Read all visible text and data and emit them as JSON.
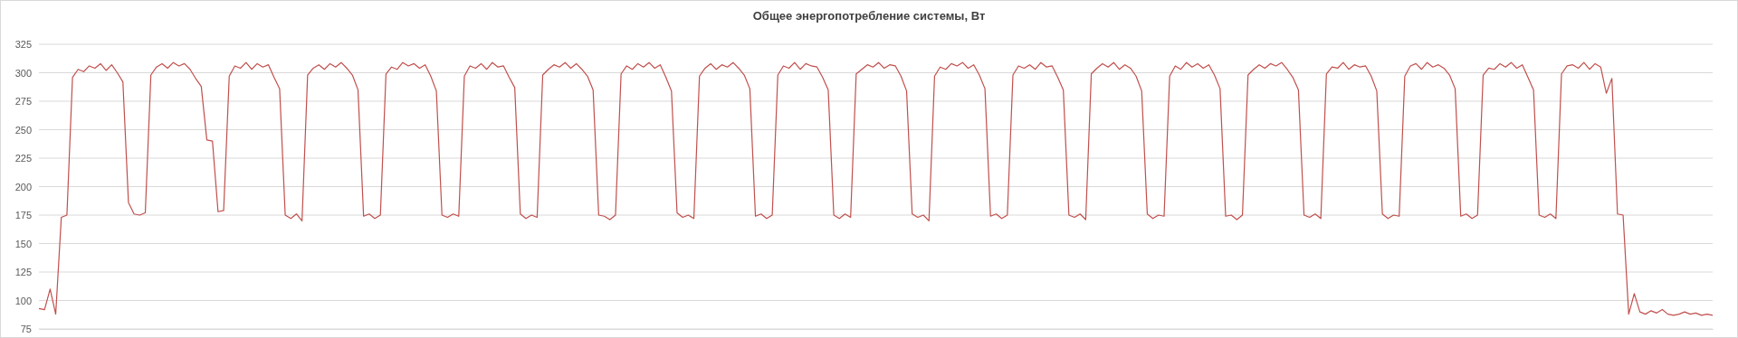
{
  "chart_data": {
    "type": "line",
    "title": "Общее энергопотребление системы, Вт",
    "categories": [
      null,
      null,
      null,
      null,
      null,
      null,
      null,
      null,
      null,
      null,
      null,
      null,
      null,
      null,
      null,
      null,
      null,
      null,
      null,
      null,
      null,
      null,
      null,
      null,
      null,
      null,
      null,
      null,
      null,
      null,
      null,
      null,
      null,
      null,
      null,
      null,
      null,
      null,
      null,
      null,
      null,
      null,
      null,
      null,
      null,
      null,
      null,
      null,
      null,
      null,
      null,
      null,
      null,
      null,
      null,
      null,
      null,
      null,
      null,
      null,
      null,
      null,
      null,
      null,
      null,
      null,
      null,
      null,
      null,
      null,
      null,
      null,
      null,
      null,
      null,
      null,
      null,
      null,
      null,
      null,
      null,
      null,
      null,
      null,
      null,
      null,
      null,
      null,
      null,
      null,
      null,
      null,
      null,
      null,
      null,
      null,
      null,
      null,
      null,
      null,
      null,
      null,
      null,
      null,
      null,
      null,
      null,
      null,
      null,
      null,
      null,
      null,
      null,
      null,
      null,
      null,
      null,
      null,
      null,
      null,
      null,
      null,
      null,
      null,
      null,
      null,
      null,
      null,
      null,
      null,
      null,
      null,
      null,
      null,
      null,
      null,
      null,
      null,
      null,
      null,
      null,
      null,
      null,
      null,
      null,
      null,
      null,
      null,
      null,
      null,
      null,
      null,
      null,
      null,
      null,
      null,
      null,
      null,
      null,
      null,
      null,
      null,
      null,
      null,
      null,
      null,
      null,
      null,
      null,
      null,
      null,
      null,
      null,
      null,
      null,
      null,
      null,
      null,
      null,
      null,
      null,
      null,
      null,
      null,
      null,
      null,
      null,
      null,
      null,
      null,
      null,
      null,
      null,
      null,
      null,
      null,
      null,
      null,
      null,
      null,
      null,
      null,
      null,
      null,
      null,
      null,
      null,
      null,
      null,
      null,
      null,
      null,
      null,
      null,
      null,
      null,
      null,
      null,
      null,
      null,
      null,
      null,
      null,
      null,
      null,
      null,
      null,
      null,
      null,
      null,
      null,
      null,
      null,
      null,
      null,
      null,
      null,
      null,
      null,
      null,
      null,
      null,
      null,
      null,
      null,
      null,
      null,
      null,
      null,
      null,
      null,
      null,
      null,
      null,
      null,
      null,
      null,
      null,
      null,
      null,
      null,
      null,
      null,
      null,
      null,
      null,
      null,
      null,
      null,
      null,
      null,
      null,
      null,
      null,
      null,
      null,
      null,
      null,
      null,
      null,
      null,
      null,
      null,
      null,
      null,
      null,
      null,
      null,
      null,
      null,
      null,
      null,
      null,
      null,
      null,
      null,
      null,
      null,
      null,
      null
    ],
    "series": [
      {
        "color": "#c0504d",
        "values": [
          93,
          92,
          110,
          88,
          173,
          175,
          296,
          303,
          301,
          306,
          304,
          308,
          302,
          307,
          300,
          292,
          186,
          176,
          175,
          177,
          298,
          305,
          308,
          304,
          309,
          306,
          308,
          303,
          295,
          288,
          241,
          240,
          178,
          179,
          297,
          306,
          304,
          309,
          303,
          308,
          305,
          307,
          296,
          286,
          175,
          172,
          176,
          170,
          298,
          304,
          307,
          303,
          308,
          305,
          309,
          304,
          298,
          285,
          174,
          176,
          172,
          175,
          299,
          305,
          303,
          309,
          306,
          308,
          304,
          307,
          297,
          284,
          175,
          173,
          176,
          174,
          297,
          306,
          304,
          308,
          303,
          309,
          305,
          306,
          296,
          287,
          176,
          172,
          175,
          173,
          298,
          303,
          307,
          305,
          309,
          304,
          308,
          303,
          297,
          285,
          175,
          174,
          171,
          175,
          299,
          306,
          303,
          308,
          305,
          309,
          304,
          307,
          296,
          284,
          177,
          173,
          175,
          172,
          297,
          304,
          308,
          303,
          307,
          305,
          309,
          304,
          298,
          286,
          174,
          176,
          172,
          175,
          298,
          306,
          304,
          309,
          303,
          308,
          306,
          305,
          296,
          285,
          175,
          172,
          176,
          173,
          299,
          303,
          307,
          305,
          309,
          304,
          307,
          306,
          297,
          284,
          176,
          173,
          175,
          170,
          297,
          305,
          303,
          308,
          306,
          309,
          304,
          307,
          298,
          286,
          174,
          176,
          172,
          175,
          298,
          306,
          304,
          307,
          303,
          309,
          305,
          306,
          296,
          285,
          175,
          173,
          176,
          171,
          299,
          304,
          308,
          305,
          309,
          303,
          307,
          304,
          297,
          284,
          176,
          172,
          175,
          174,
          297,
          306,
          303,
          309,
          305,
          308,
          304,
          307,
          298,
          286,
          174,
          175,
          171,
          175,
          298,
          303,
          307,
          304,
          308,
          306,
          309,
          303,
          296,
          285,
          175,
          173,
          176,
          172,
          299,
          305,
          304,
          309,
          303,
          307,
          305,
          306,
          297,
          284,
          176,
          172,
          175,
          174,
          297,
          306,
          308,
          303,
          309,
          305,
          307,
          304,
          298,
          286,
          174,
          176,
          172,
          175,
          298,
          304,
          303,
          308,
          305,
          309,
          304,
          307,
          296,
          285,
          175,
          173,
          176,
          172,
          299,
          306,
          307,
          304,
          309,
          303,
          308,
          305,
          282,
          295,
          176,
          175,
          88,
          106,
          90,
          88,
          91,
          89,
          92,
          88,
          87,
          88,
          90,
          88,
          89,
          87,
          88,
          87
        ]
      }
    ],
    "ylim": [
      75,
      325
    ],
    "yticks": [
      75,
      100,
      125,
      150,
      175,
      200,
      225,
      250,
      275,
      300,
      325
    ],
    "grid": "y",
    "marker": "none",
    "line_style": "solid"
  }
}
